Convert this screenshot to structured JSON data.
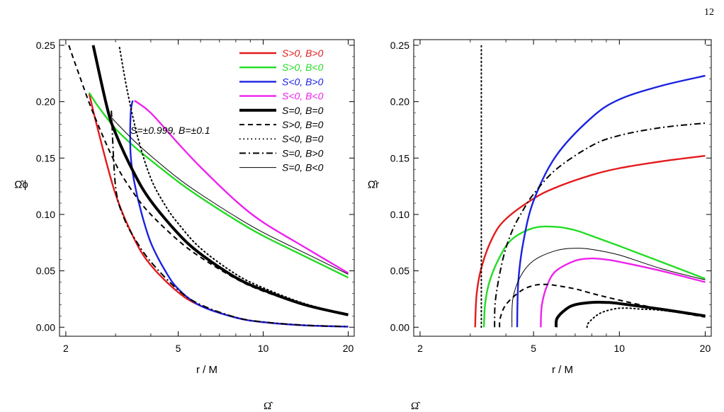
{
  "page_number": "12",
  "chart_data": [
    {
      "type": "line",
      "panel": "left",
      "xlabel": "r / M",
      "ylabel": "Ω̂ϕ",
      "x_scale": "log",
      "xlim": [
        1.9,
        21
      ],
      "ylim": [
        -0.008,
        0.255
      ],
      "xticks": [
        "2",
        "5",
        "10",
        "20"
      ],
      "yticks": [
        "0.00",
        "0.05",
        "0.10",
        "0.15",
        "0.20",
        "0.25"
      ],
      "annotation": "S=±0.999, B=±0.1",
      "legend": "top-right",
      "series": [
        {
          "name": "S>0, B>0",
          "color": "#e31a1c",
          "dash": "",
          "width": 2.4,
          "x": [
            2.42,
            2.6,
            3.0,
            3.5,
            4.0,
            5.0,
            6.0,
            8.0,
            10.0,
            14.0,
            20.0
          ],
          "y": [
            0.207,
            0.175,
            0.118,
            0.078,
            0.055,
            0.031,
            0.019,
            0.0085,
            0.0045,
            0.0017,
            0.0005
          ]
        },
        {
          "name": "S>0, B<0",
          "color": "#22dd22",
          "dash": "",
          "width": 2.4,
          "x": [
            2.42,
            2.6,
            3.0,
            3.5,
            4.0,
            5.0,
            6.0,
            8.0,
            10.0,
            14.0,
            20.0
          ],
          "y": [
            0.208,
            0.196,
            0.176,
            0.16,
            0.148,
            0.129,
            0.115,
            0.095,
            0.081,
            0.063,
            0.044
          ]
        },
        {
          "name": "S<0, B>0",
          "color": "#1a22e0",
          "dash": "",
          "width": 2.4,
          "x": [
            3.45,
            3.4,
            3.38,
            3.4,
            3.5,
            3.7,
            4.0,
            4.5,
            5.0,
            6.0,
            8.0,
            10.0,
            14.0,
            20.0
          ],
          "y": [
            0.201,
            0.192,
            0.17,
            0.15,
            0.128,
            0.102,
            0.075,
            0.05,
            0.034,
            0.019,
            0.0085,
            0.0045,
            0.0017,
            0.0005
          ]
        },
        {
          "name": "S<0, B<0",
          "color": "#ee22ee",
          "dash": "",
          "width": 2.4,
          "x": [
            3.5,
            4.0,
            5.0,
            6.0,
            8.0,
            10.0,
            14.0,
            20.0
          ],
          "y": [
            0.201,
            0.19,
            0.163,
            0.142,
            0.112,
            0.093,
            0.071,
            0.048
          ]
        },
        {
          "name": "S=0, B=0",
          "color": "#000000",
          "dash": "",
          "width": 4,
          "x": [
            2.5,
            2.8,
            3.0,
            3.5,
            4.0,
            5.0,
            6.0,
            8.0,
            10.0,
            14.0,
            20.0
          ],
          "y": [
            0.25,
            0.195,
            0.172,
            0.136,
            0.112,
            0.083,
            0.065,
            0.044,
            0.033,
            0.02,
            0.011
          ]
        },
        {
          "name": "S>0, B=0",
          "color": "#000000",
          "dash": "7,5",
          "width": 2,
          "x": [
            2.05,
            2.2,
            2.5,
            3.0,
            3.5,
            4.0,
            5.0,
            6.0,
            8.0,
            10.0,
            14.0,
            20.0
          ],
          "y": [
            0.25,
            0.228,
            0.19,
            0.145,
            0.118,
            0.1,
            0.077,
            0.062,
            0.043,
            0.032,
            0.02,
            0.011
          ]
        },
        {
          "name": "S<0, B=0",
          "color": "#000000",
          "dash": "1.5,4",
          "width": 2,
          "x": [
            3.1,
            3.3,
            3.6,
            4.0,
            4.5,
            5.0,
            6.0,
            8.0,
            10.0,
            14.0,
            20.0
          ],
          "y": [
            0.248,
            0.21,
            0.168,
            0.132,
            0.108,
            0.092,
            0.07,
            0.047,
            0.035,
            0.021,
            0.011
          ]
        },
        {
          "name": "S=0, B>0",
          "color": "#000000",
          "dash": "9,4,2,4",
          "width": 2,
          "x": [
            2.9,
            3.0,
            3.2,
            3.5,
            4.0,
            5.0,
            6.0,
            8.0,
            10.0,
            14.0,
            20.0
          ],
          "y": [
            0.192,
            0.125,
            0.098,
            0.079,
            0.058,
            0.033,
            0.02,
            0.0088,
            0.0047,
            0.0018,
            0.0006
          ]
        },
        {
          "name": "S=0, B<0",
          "color": "#000000",
          "dash": "",
          "width": 1,
          "x": [
            2.9,
            3.0,
            3.5,
            4.0,
            5.0,
            6.0,
            8.0,
            10.0,
            14.0,
            20.0
          ],
          "y": [
            0.186,
            0.182,
            0.165,
            0.152,
            0.132,
            0.118,
            0.098,
            0.084,
            0.066,
            0.047
          ]
        }
      ]
    },
    {
      "type": "line",
      "panel": "right",
      "xlabel": "r / M",
      "ylabel": "Ω̂r",
      "x_scale": "log",
      "xlim": [
        1.9,
        21
      ],
      "ylim": [
        -0.008,
        0.255
      ],
      "xticks": [
        "2",
        "5",
        "10",
        "20"
      ],
      "yticks": [
        "0.00",
        "0.05",
        "0.10",
        "0.15",
        "0.20",
        "0.25"
      ],
      "series": [
        {
          "name": "S>0, B>0",
          "color": "#e31a1c",
          "dash": "",
          "width": 2.4,
          "x": [
            3.12,
            3.16,
            3.3,
            3.6,
            4.0,
            5.0,
            6.0,
            8.0,
            10.0,
            14.0,
            20.0
          ],
          "y": [
            0.0,
            0.03,
            0.055,
            0.08,
            0.096,
            0.114,
            0.124,
            0.135,
            0.141,
            0.147,
            0.152
          ]
        },
        {
          "name": "S>0, B<0",
          "color": "#22dd22",
          "dash": "",
          "width": 2.4,
          "x": [
            3.35,
            3.38,
            3.5,
            3.8,
            4.2,
            5.0,
            6.0,
            7.0,
            8.0,
            10.0,
            14.0,
            20.0
          ],
          "y": [
            0.0,
            0.02,
            0.04,
            0.062,
            0.078,
            0.088,
            0.089,
            0.086,
            0.081,
            0.072,
            0.058,
            0.043
          ]
        },
        {
          "name": "S<0, B>0",
          "color": "#1a22e0",
          "dash": "",
          "width": 2.4,
          "x": [
            4.38,
            4.42,
            4.6,
            5.0,
            6.0,
            8.0,
            10.0,
            14.0,
            20.0
          ],
          "y": [
            0.0,
            0.04,
            0.075,
            0.112,
            0.152,
            0.186,
            0.202,
            0.214,
            0.223
          ]
        },
        {
          "name": "S<0, B<0",
          "color": "#ee22ee",
          "dash": "",
          "width": 2.4,
          "x": [
            5.3,
            5.35,
            5.6,
            6.0,
            7.0,
            8.0,
            9.0,
            10.0,
            14.0,
            20.0
          ],
          "y": [
            0.0,
            0.02,
            0.038,
            0.05,
            0.059,
            0.061,
            0.06,
            0.058,
            0.05,
            0.04
          ]
        },
        {
          "name": "S=0, B=0",
          "color": "#000000",
          "dash": "",
          "width": 4,
          "x": [
            6.0,
            6.05,
            6.5,
            7.0,
            8.0,
            9.0,
            10.0,
            14.0,
            20.0
          ],
          "y": [
            0.0,
            0.008,
            0.016,
            0.02,
            0.022,
            0.022,
            0.021,
            0.016,
            0.01
          ]
        },
        {
          "name": "S>0, B=0",
          "color": "#000000",
          "dash": "7,5",
          "width": 2,
          "x": [
            3.8,
            3.82,
            4.0,
            4.5,
            5.0,
            5.5,
            6.0,
            7.0,
            8.0,
            10.0,
            14.0,
            20.0
          ],
          "y": [
            0.0,
            0.008,
            0.02,
            0.032,
            0.037,
            0.038,
            0.037,
            0.034,
            0.03,
            0.024,
            0.016,
            0.009
          ]
        },
        {
          "name": "S<0, B=0",
          "color": "#000000",
          "dash": "1.5,4",
          "width": 2,
          "x": [
            3.28,
            3.28
          ],
          "y": [
            0.0,
            0.25
          ]
        },
        {
          "name": "S<0, B=0 (outer)",
          "color": "#000000",
          "dash": "1.5,4",
          "width": 2,
          "x": [
            7.7,
            7.8,
            8.5,
            9.5,
            10.5,
            12.0,
            14.0,
            20.0
          ],
          "y": [
            0.0,
            0.004,
            0.012,
            0.016,
            0.017,
            0.016,
            0.015,
            0.01
          ]
        },
        {
          "name": "S=0, B>0",
          "color": "#000000",
          "dash": "9,4,2,4",
          "width": 2,
          "x": [
            3.65,
            3.68,
            3.9,
            4.2,
            4.6,
            5.0,
            6.0,
            8.0,
            10.0,
            14.0,
            20.0
          ],
          "y": [
            0.0,
            0.025,
            0.06,
            0.085,
            0.104,
            0.118,
            0.14,
            0.161,
            0.17,
            0.177,
            0.181
          ]
        },
        {
          "name": "S=0, B<0",
          "color": "#000000",
          "dash": "",
          "width": 1,
          "x": [
            4.2,
            4.23,
            4.5,
            5.0,
            6.0,
            7.0,
            8.0,
            10.0,
            14.0,
            20.0
          ],
          "y": [
            0.0,
            0.025,
            0.045,
            0.059,
            0.068,
            0.07,
            0.069,
            0.064,
            0.052,
            0.042
          ]
        }
      ]
    }
  ],
  "bottom_caption_fragments": [
    "Ω̂",
    "Ω̂"
  ]
}
